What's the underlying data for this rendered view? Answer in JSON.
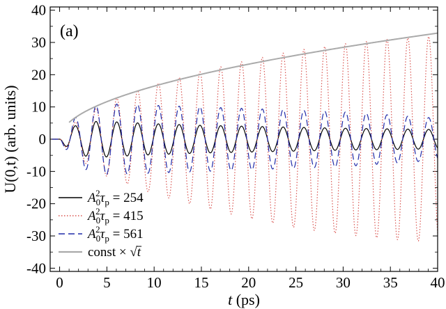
{
  "chart_data": {
    "type": "line",
    "panel_label": "(a)",
    "xlabel": "(ps)",
    "xlabel_var": "t",
    "ylabel": "U(0,t) (arb. units)",
    "xlim": [
      -1,
      40
    ],
    "ylim": [
      -41,
      41
    ],
    "x_ticks": [
      0,
      5,
      10,
      15,
      20,
      25,
      30,
      35,
      40
    ],
    "y_ticks": [
      -40,
      -30,
      -20,
      -10,
      0,
      10,
      20,
      30,
      40
    ],
    "x_tick_labels": [
      "0",
      "5",
      "10",
      "15",
      "20",
      "25",
      "30",
      "35",
      "40"
    ],
    "y_tick_labels": [
      "-40",
      "-30",
      "-20",
      "-10",
      "0",
      "10",
      "20",
      "30",
      "40"
    ],
    "grid": false,
    "legend_position": "bottom-left",
    "oscillation_period_ps": 2.2,
    "series": [
      {
        "name": "A0^2 τp = 254",
        "legend_value": "254",
        "color": "#000000",
        "dash": "solid",
        "envelope_t": [
          0,
          1,
          3,
          5,
          10,
          15,
          20,
          25,
          30,
          35,
          40
        ],
        "envelope_amplitude": [
          0,
          3.5,
          5.5,
          5.5,
          4.8,
          4.3,
          4.0,
          3.7,
          3.4,
          3.2,
          3.0
        ]
      },
      {
        "name": "A0^2 τp = 415",
        "legend_value": "415",
        "color": "#d9534f",
        "dash": "dotted",
        "envelope_t": [
          0,
          1,
          3,
          5,
          10,
          15,
          20,
          25,
          30,
          35,
          40
        ],
        "envelope_amplitude": [
          0,
          4,
          8,
          11.5,
          17,
          21,
          24.5,
          27.5,
          29.5,
          31,
          32
        ]
      },
      {
        "name": "A0^2 τp = 561",
        "legend_value": "561",
        "color": "#1f2aa8",
        "dash": "dashed",
        "envelope_t": [
          0,
          1,
          3,
          5,
          10,
          15,
          20,
          25,
          30,
          35,
          40
        ],
        "envelope_amplitude": [
          0,
          5,
          10,
          11,
          10.5,
          10,
          9.5,
          9.0,
          8.5,
          7.5,
          6.5
        ]
      },
      {
        "name": "const × √t",
        "legend_text": "const ×",
        "color": "#aaaaaa",
        "dash": "solid",
        "curve": "5.2 * sqrt(t)",
        "t_start": 1
      }
    ]
  }
}
